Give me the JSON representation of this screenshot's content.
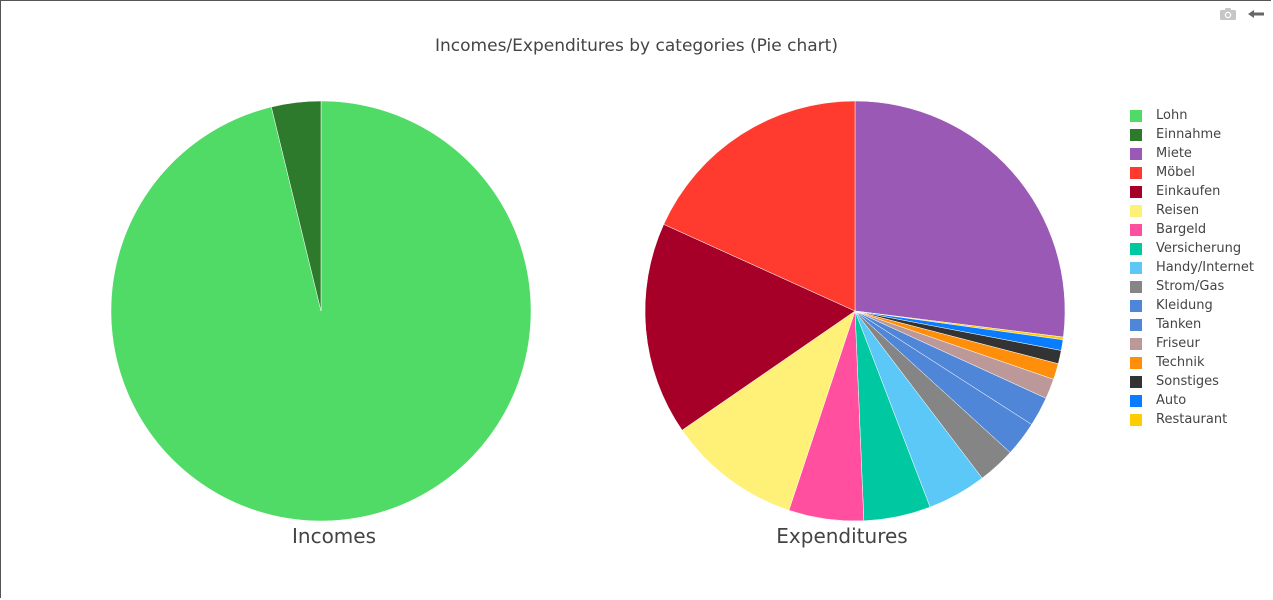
{
  "chart_data": {
    "type": "pie",
    "title": "Incomes/Expenditures by categories (Pie chart)",
    "legend_position": "right",
    "pies": [
      {
        "name": "Incomes",
        "slices": [
          {
            "label": "Lohn",
            "value": 96.2,
            "color": "#4fdb66"
          },
          {
            "label": "Einnahme",
            "value": 3.8,
            "color": "#2d7a2c"
          }
        ]
      },
      {
        "name": "Expenditures",
        "slices": [
          {
            "label": "Miete",
            "value": 26.2,
            "color": "#9a59b5"
          },
          {
            "label": "Restaurant",
            "value": 0.2,
            "color": "#ffcc00"
          },
          {
            "label": "Auto",
            "value": 0.8,
            "color": "#0a7cff"
          },
          {
            "label": "Sonstiges",
            "value": 1.0,
            "color": "#333333"
          },
          {
            "label": "Technik",
            "value": 1.2,
            "color": "#ff8e0a"
          },
          {
            "label": "Friseur",
            "value": 1.5,
            "color": "#bc9898"
          },
          {
            "label": "Tanken",
            "value": 2.2,
            "color": "#4f86d8"
          },
          {
            "label": "Kleidung",
            "value": 2.6,
            "color": "#4f86d8"
          },
          {
            "label": "Strom/Gas",
            "value": 2.8,
            "color": "#858585"
          },
          {
            "label": "Handy/Internet",
            "value": 4.4,
            "color": "#5bc8f8"
          },
          {
            "label": "Versicherung",
            "value": 5.0,
            "color": "#00c8a0"
          },
          {
            "label": "Bargeld",
            "value": 5.6,
            "color": "#ff4f9e"
          },
          {
            "label": "Reisen",
            "value": 10.0,
            "color": "#fff077"
          },
          {
            "label": "Einkaufen",
            "value": 15.9,
            "color": "#a60028"
          },
          {
            "label": "Möbel",
            "value": 17.7,
            "color": "#ff3a2e"
          }
        ]
      }
    ],
    "legend": [
      {
        "label": "Lohn",
        "color": "#4fdb66"
      },
      {
        "label": "Einnahme",
        "color": "#2d7a2c"
      },
      {
        "label": "Miete",
        "color": "#9a59b5"
      },
      {
        "label": "Möbel",
        "color": "#ff3a2e"
      },
      {
        "label": "Einkaufen",
        "color": "#a60028"
      },
      {
        "label": "Reisen",
        "color": "#fff077"
      },
      {
        "label": "Bargeld",
        "color": "#ff4f9e"
      },
      {
        "label": "Versicherung",
        "color": "#00c8a0"
      },
      {
        "label": "Handy/Internet",
        "color": "#5bc8f8"
      },
      {
        "label": "Strom/Gas",
        "color": "#858585"
      },
      {
        "label": "Kleidung",
        "color": "#4f86d8"
      },
      {
        "label": "Tanken",
        "color": "#4f86d8"
      },
      {
        "label": "Friseur",
        "color": "#bc9898"
      },
      {
        "label": "Technik",
        "color": "#ff8e0a"
      },
      {
        "label": "Sonstiges",
        "color": "#333333"
      },
      {
        "label": "Auto",
        "color": "#0a7cff"
      },
      {
        "label": "Restaurant",
        "color": "#ffcc00"
      }
    ]
  },
  "modebar": {
    "icons": [
      "camera-icon",
      "back-arrow-icon"
    ]
  }
}
